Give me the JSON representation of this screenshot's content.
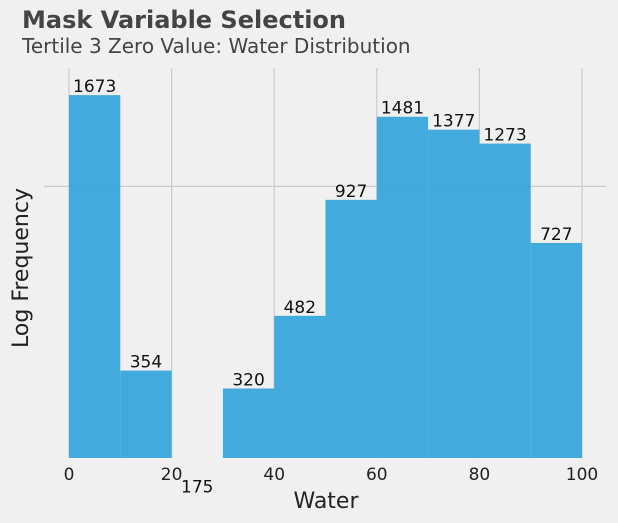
{
  "chart_data": {
    "type": "bar",
    "title": "Mask Variable Selection",
    "subtitle": "Tertile 3 Zero Value: Water Distribution",
    "xlabel": "Water",
    "ylabel": "Log Frequency",
    "bin_edges": [
      0,
      10,
      20,
      30,
      40,
      50,
      60,
      70,
      80,
      90,
      100
    ],
    "values": [
      1673,
      354,
      175,
      320,
      482,
      927,
      1481,
      1377,
      1273,
      727
    ],
    "data_labels": [
      "1673",
      "354",
      "175",
      "320",
      "482",
      "927",
      "1481",
      "1377",
      "1273",
      "727"
    ],
    "xlim": [
      0,
      100
    ],
    "xticks": [
      0,
      20,
      40,
      60,
      80,
      100
    ],
    "xtick_labels": [
      "0",
      "20",
      "40",
      "60",
      "80",
      "100"
    ],
    "yscale": "log",
    "grid": true,
    "bar_color": "#30a2da",
    "background_color": "#f0f0f0"
  }
}
